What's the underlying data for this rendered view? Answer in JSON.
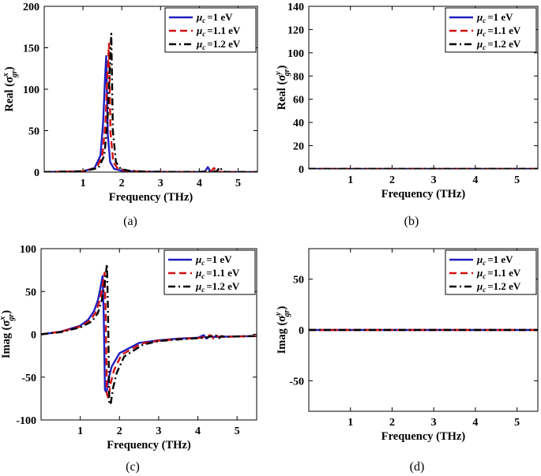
{
  "chart_data": [
    {
      "type": "line",
      "panel": "a",
      "caption": "(a)",
      "xlabel": "Frequency (THz)",
      "ylabel_prefix": "Real",
      "sigma_sup": "x",
      "xlim": [
        0,
        5.5
      ],
      "ylim": [
        0,
        200
      ],
      "xticks": [
        1,
        2,
        3,
        4,
        5
      ],
      "yticks": [
        0,
        50,
        100,
        150,
        200
      ],
      "legend_position": "top-right",
      "series": [
        {
          "name": "μc =1 eV",
          "mu": "μ",
          "sub": "c",
          "label": "=1 eV",
          "color": "#1f1fbf",
          "dash": "solid",
          "x": [
            0,
            1.0,
            1.3,
            1.45,
            1.52,
            1.57,
            1.6,
            1.64,
            1.7,
            1.8,
            2.0,
            2.5,
            3.5,
            4.0,
            4.15,
            4.22,
            4.28,
            4.35,
            5.5
          ],
          "y": [
            0,
            1,
            5,
            20,
            60,
            115,
            140,
            45,
            12,
            4,
            1.5,
            0.5,
            0.2,
            0.3,
            1,
            6,
            1,
            0.2,
            0
          ]
        },
        {
          "name": "μc =1.1 eV",
          "mu": "μ",
          "sub": "c",
          "label": "=1.1 eV",
          "color": "#d01010",
          "dash": "dash",
          "x": [
            0,
            1.0,
            1.35,
            1.5,
            1.58,
            1.63,
            1.67,
            1.71,
            1.78,
            1.9,
            2.1,
            2.6,
            3.5,
            4.1,
            4.3,
            4.38,
            4.44,
            4.52,
            5.5
          ],
          "y": [
            0,
            1,
            5,
            20,
            60,
            118,
            155,
            48,
            12,
            4,
            1.5,
            0.5,
            0.2,
            0.3,
            1,
            5,
            1,
            0.2,
            0
          ]
        },
        {
          "name": "μc =1.2 eV",
          "mu": "μ",
          "sub": "c",
          "label": "=1.2 eV",
          "color": "#000000",
          "dash": "dashdot",
          "x": [
            0,
            1.0,
            1.4,
            1.55,
            1.63,
            1.69,
            1.73,
            1.77,
            1.85,
            1.97,
            2.2,
            2.7,
            3.5,
            4.2,
            4.45,
            4.53,
            4.6,
            4.68,
            5.5
          ],
          "y": [
            0,
            1,
            5,
            20,
            60,
            125,
            167,
            50,
            12,
            4,
            1.5,
            0.5,
            0.2,
            0.3,
            1,
            6,
            1,
            0.2,
            0
          ]
        }
      ]
    },
    {
      "type": "line",
      "panel": "b",
      "caption": "(b)",
      "xlabel": "Frequency (THz)",
      "ylabel_prefix": "Real",
      "sigma_sup": "y",
      "xlim": [
        0,
        5.5
      ],
      "ylim": [
        0,
        140
      ],
      "xticks": [
        1,
        2,
        3,
        4,
        5
      ],
      "yticks": [
        0,
        20,
        40,
        60,
        80,
        100,
        120,
        140
      ],
      "legend_position": "top-right",
      "series": [
        {
          "name": "μc =1 eV",
          "mu": "μ",
          "sub": "c",
          "label": "=1 eV",
          "color": "#1f1fbf",
          "dash": "solid",
          "x": [
            0,
            5.5
          ],
          "y": [
            0,
            0
          ]
        },
        {
          "name": "μc =1.1 eV",
          "mu": "μ",
          "sub": "c",
          "label": "=1.1 eV",
          "color": "#d01010",
          "dash": "dash",
          "x": [
            0,
            5.5
          ],
          "y": [
            0,
            0
          ]
        },
        {
          "name": "μc =1.2 eV",
          "mu": "μ",
          "sub": "c",
          "label": "=1.2 eV",
          "color": "#000000",
          "dash": "dashdot",
          "x": [
            0,
            5.5
          ],
          "y": [
            0,
            0
          ]
        }
      ]
    },
    {
      "type": "line",
      "panel": "c",
      "caption": "(c)",
      "xlabel": "Frequency (THz)",
      "ylabel_prefix": "Imag",
      "sigma_sup": "x",
      "xlim": [
        0,
        5.5
      ],
      "ylim": [
        -100,
        100
      ],
      "xticks": [
        1,
        2,
        3,
        4,
        5
      ],
      "yticks": [
        -100,
        -50,
        0,
        50,
        100
      ],
      "legend_position": "top-right",
      "series": [
        {
          "name": "μc =1 eV",
          "mu": "μ",
          "sub": "c",
          "label": "=1 eV",
          "color": "#1f1fbf",
          "dash": "solid",
          "x": [
            0,
            0.5,
            1.0,
            1.2,
            1.35,
            1.45,
            1.52,
            1.57,
            1.6,
            1.63,
            1.67,
            1.72,
            1.8,
            2.0,
            2.5,
            3.0,
            3.5,
            4.0,
            4.15,
            4.22,
            4.3,
            4.4,
            5.0,
            5.5
          ],
          "y": [
            0,
            3,
            10,
            17,
            27,
            40,
            55,
            68,
            20,
            -65,
            -68,
            -52,
            -38,
            -22,
            -10,
            -7,
            -5,
            -4,
            -1,
            -5,
            -2,
            -3,
            -2.5,
            -2
          ]
        },
        {
          "name": "μc =1.1 eV",
          "mu": "μ",
          "sub": "c",
          "label": "=1.1 eV",
          "color": "#d01010",
          "dash": "dash",
          "x": [
            0,
            0.5,
            1.0,
            1.25,
            1.4,
            1.5,
            1.57,
            1.62,
            1.65,
            1.68,
            1.72,
            1.77,
            1.86,
            2.05,
            2.55,
            3.0,
            3.5,
            4.1,
            4.32,
            4.4,
            4.48,
            4.58,
            5.0,
            5.5
          ],
          "y": [
            0,
            3,
            9,
            16,
            26,
            40,
            55,
            72,
            20,
            -70,
            -75,
            -58,
            -42,
            -24,
            -11,
            -7.5,
            -5.5,
            -4,
            -1,
            -5,
            -2,
            -3,
            -2.5,
            -2
          ]
        },
        {
          "name": "μc =1.2 eV",
          "mu": "μ",
          "sub": "c",
          "label": "=1.2 eV",
          "color": "#000000",
          "dash": "dashdot",
          "x": [
            0,
            0.5,
            1.0,
            1.3,
            1.45,
            1.55,
            1.62,
            1.68,
            1.71,
            1.74,
            1.78,
            1.84,
            1.93,
            2.12,
            2.6,
            3.0,
            3.5,
            4.2,
            4.45,
            4.53,
            4.6,
            4.7,
            5.0,
            5.5
          ],
          "y": [
            0,
            2.5,
            8,
            15,
            25,
            40,
            57,
            82,
            20,
            -82,
            -80,
            -62,
            -45,
            -26,
            -12,
            -8,
            -6,
            -4,
            -1,
            -5,
            -2,
            -3,
            -2.5,
            -2
          ]
        }
      ]
    },
    {
      "type": "line",
      "panel": "d",
      "caption": "(d)",
      "xlabel": "Frequency (THz)",
      "ylabel_prefix": "Imag",
      "sigma_sup": "y",
      "xlim": [
        0,
        5.5
      ],
      "ylim": [
        -80,
        80
      ],
      "xticks": [
        1,
        2,
        3,
        4,
        5
      ],
      "yticks": [
        -50,
        0,
        50
      ],
      "legend_position": "top-right",
      "series": [
        {
          "name": "μc =1 eV",
          "mu": "μ",
          "sub": "c",
          "label": "=1 eV",
          "color": "#1f1fbf",
          "dash": "solid",
          "x": [
            0,
            5.5
          ],
          "y": [
            0,
            0
          ]
        },
        {
          "name": "μc =1.1 eV",
          "mu": "μ",
          "sub": "c",
          "label": "=1.1 eV",
          "color": "#d01010",
          "dash": "dash",
          "x": [
            0,
            5.5
          ],
          "y": [
            0,
            0
          ]
        },
        {
          "name": "μc =1.2 eV",
          "mu": "μ",
          "sub": "c",
          "label": "=1.2 eV",
          "color": "#000000",
          "dash": "dashdot",
          "x": [
            0,
            5.5
          ],
          "y": [
            0,
            0
          ]
        }
      ]
    }
  ]
}
